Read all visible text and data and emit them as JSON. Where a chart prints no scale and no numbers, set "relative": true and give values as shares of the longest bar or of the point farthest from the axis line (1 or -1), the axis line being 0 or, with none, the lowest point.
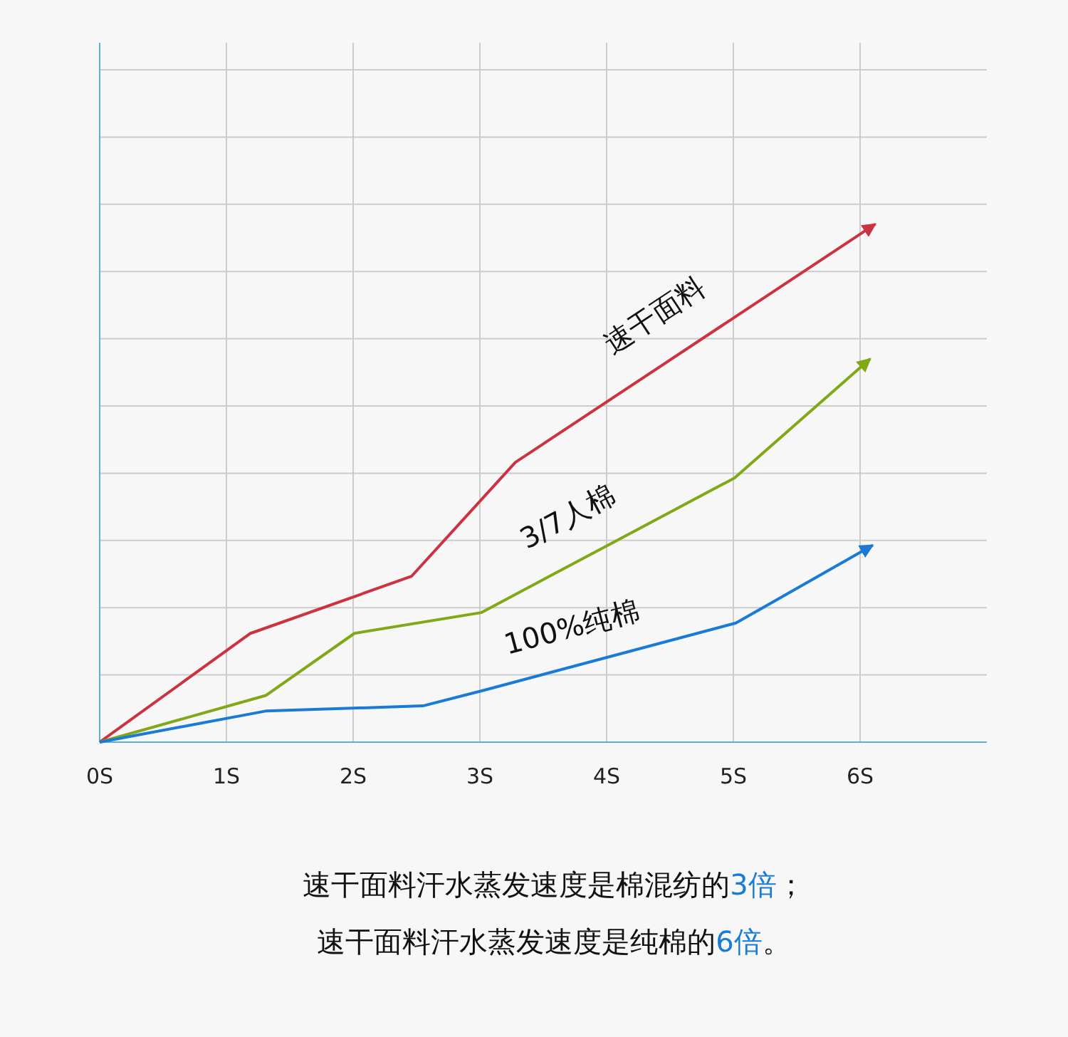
{
  "chart_data": {
    "type": "line",
    "relative": true,
    "xlim": [
      0,
      7
    ],
    "xticks": [
      {
        "value": 0,
        "label": "0S"
      },
      {
        "value": 1,
        "label": "1S"
      },
      {
        "value": 2,
        "label": "2S"
      },
      {
        "value": 3,
        "label": "3S"
      },
      {
        "value": 4,
        "label": "4S"
      },
      {
        "value": 5,
        "label": "5S"
      },
      {
        "value": 6,
        "label": "6S"
      }
    ],
    "grid": true,
    "marker": "none",
    "line_style": "solid",
    "series": [
      {
        "name": "速干面料",
        "color": "#cc3340",
        "x": [
          0,
          1.19,
          2.46,
          3.28,
          6.12
        ],
        "values": [
          0,
          0.21,
          0.32,
          0.54,
          1.0
        ]
      },
      {
        "name": "3/7人棉",
        "color": "#80a817",
        "x": [
          0,
          1.31,
          2.01,
          3.01,
          5.01,
          6.08
        ],
        "values": [
          0,
          0.09,
          0.21,
          0.25,
          0.51,
          0.74
        ]
      },
      {
        "name": "100%纯棉",
        "color": "#1a7bd6",
        "x": [
          0,
          1.31,
          2.55,
          3.03,
          5.02,
          6.1
        ],
        "values": [
          0,
          0.06,
          0.07,
          0.1,
          0.23,
          0.38
        ]
      }
    ],
    "annotations": [
      "速干面料汗水蒸发速度是棉混纺的3倍；",
      "速干面料汗水蒸发速度是纯棉的6倍。"
    ]
  }
}
